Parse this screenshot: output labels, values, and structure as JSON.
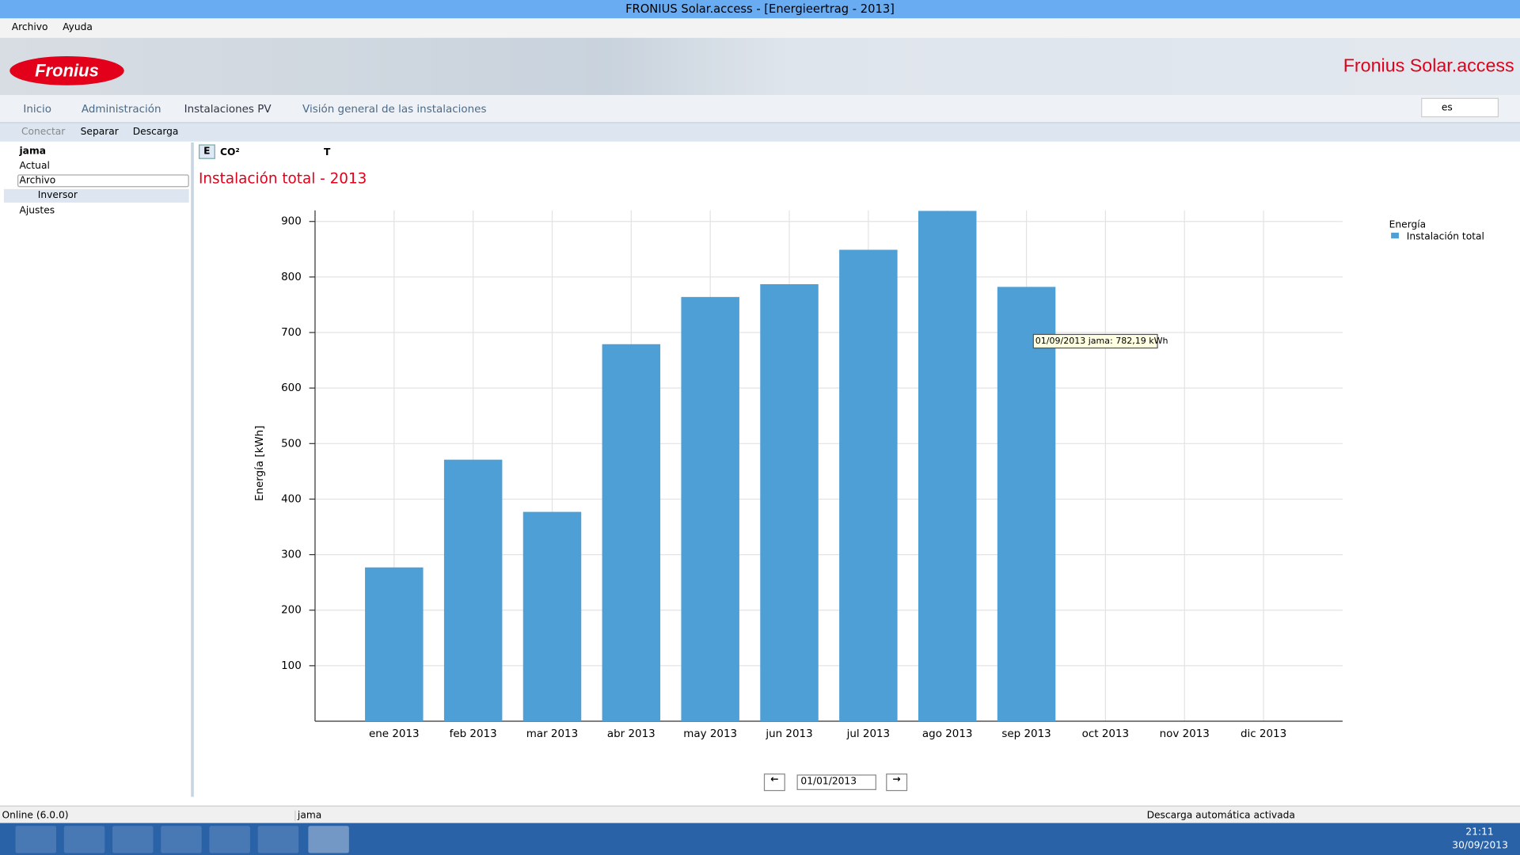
{
  "window": {
    "title": "FRONIUS Solar.access - [Energieertrag - 2013]"
  },
  "menu": [
    "Archivo",
    "Ayuda"
  ],
  "header": {
    "logo": "Fronius",
    "brand": "Fronius Solar.access"
  },
  "nav": {
    "tabs": [
      "Inicio",
      "Administración",
      "Instalaciones PV",
      "Visión general de las instalaciones"
    ],
    "language": "es"
  },
  "toolbar": [
    "Conectar",
    "Separar",
    "Descarga"
  ],
  "tree": {
    "root": "jama",
    "items": [
      "Actual",
      "Archivo",
      "Inversor",
      "Ajustes"
    ]
  },
  "chart_toolbar": [
    "E",
    "CO²",
    "T"
  ],
  "chart_data": {
    "type": "bar",
    "title": "Instalación total - 2013",
    "y_label": "Energía [kWh]",
    "categories": [
      "ene 2013",
      "feb 2013",
      "mar 2013",
      "abr 2013",
      "may 2013",
      "jun 2013",
      "jul 2013",
      "ago 2013",
      "sep 2013",
      "oct 2013",
      "nov 2013",
      "dic 2013"
    ],
    "legend_title": "Energía",
    "series": [
      {
        "name": "Instalación total",
        "color": "#4e9fd6",
        "values": [
          277,
          471,
          377,
          679,
          764,
          787,
          849,
          919,
          782.19,
          null,
          null,
          null
        ]
      }
    ],
    "ylim": [
      0,
      920
    ],
    "yticks": [
      100,
      200,
      300,
      400,
      500,
      600,
      700,
      800,
      900
    ],
    "grid": true,
    "tooltip": "01/09/2013 jama: 782,19 kWh"
  },
  "date_picker": "01/01/2013",
  "status": [
    "Online (6.0.0)",
    "jama",
    "Descarga automática activada"
  ],
  "taskbar": {
    "time": "21:11",
    "date": "30/09/2013"
  }
}
